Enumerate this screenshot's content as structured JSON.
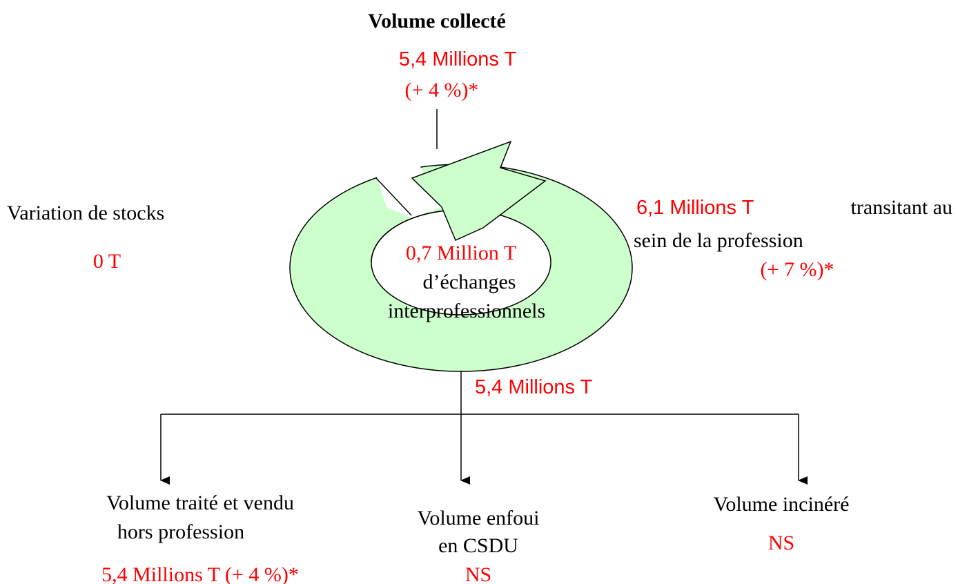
{
  "top": {
    "title": "Volume collecté",
    "value": "5,4 Millions T",
    "change": "(+ 4 %)*"
  },
  "left": {
    "label": "Variation de stocks",
    "value": "0 T"
  },
  "right": {
    "value": "6,1 Millions T",
    "text1": "transitant au",
    "text2": "sein de la profession",
    "change": "(+ 7 %)*"
  },
  "center": {
    "value": "0,7 Million T",
    "line1": "d’échanges",
    "line2": "interprofessionnels"
  },
  "flow": {
    "value": "5,4 Millions T"
  },
  "outputs": [
    {
      "line1": "Volume traité et vendu",
      "line2": "hors profession",
      "value": "5,4 Millions T (+ 4 %)*"
    },
    {
      "line1": "Volume enfoui",
      "line2": "en CSDU",
      "value": "NS"
    },
    {
      "line1": "Volume incinéré",
      "value": "NS"
    }
  ]
}
